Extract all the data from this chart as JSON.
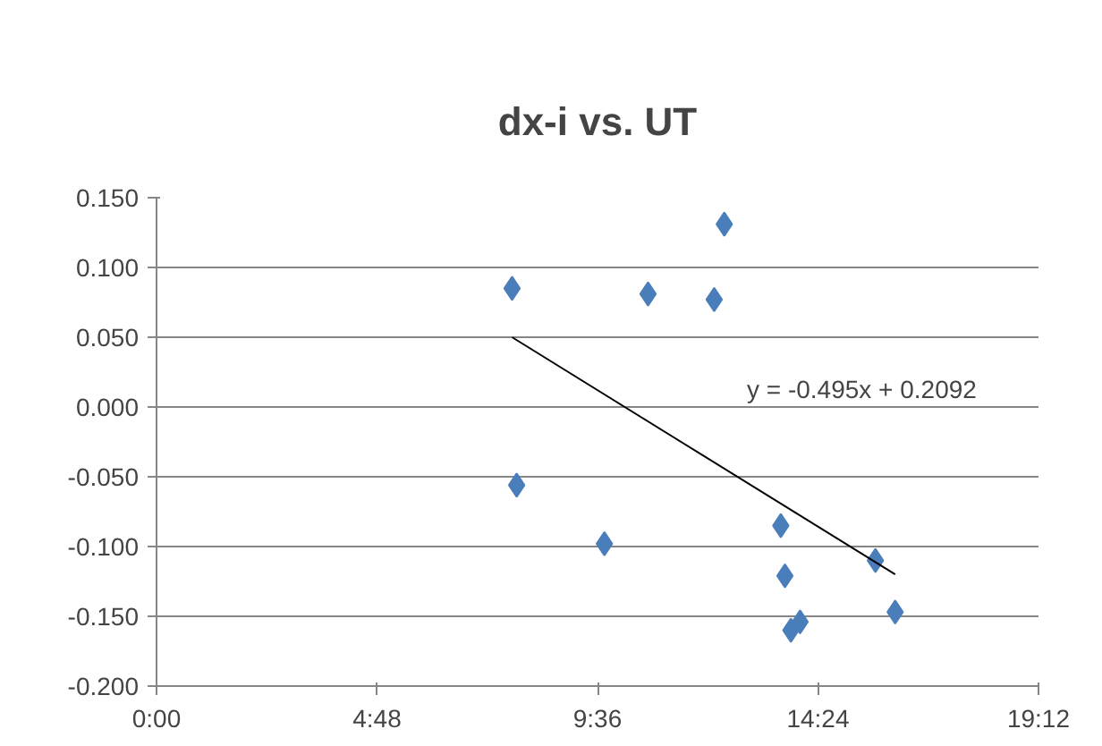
{
  "chart_data": {
    "type": "scatter",
    "title": "dx-i vs. UT",
    "xlim": [
      0,
      19.2
    ],
    "xticks": [
      {
        "value": 0,
        "label": "0:00"
      },
      {
        "value": 4.8,
        "label": "4:48"
      },
      {
        "value": 9.6,
        "label": "9:36"
      },
      {
        "value": 14.4,
        "label": "14:24"
      },
      {
        "value": 19.2,
        "label": "19:12"
      }
    ],
    "ylim": [
      -0.2,
      0.15
    ],
    "yticks": [
      {
        "value": -0.2,
        "label": "-0.200"
      },
      {
        "value": -0.15,
        "label": "-0.150"
      },
      {
        "value": -0.1,
        "label": "-0.100"
      },
      {
        "value": -0.05,
        "label": "-0.050"
      },
      {
        "value": 0,
        "label": "0.000"
      },
      {
        "value": 0.05,
        "label": "0.050"
      },
      {
        "value": 0.1,
        "label": "0.100"
      },
      {
        "value": 0.15,
        "label": "0.150"
      }
    ],
    "grid": "y",
    "marker": "diamond",
    "series": [
      {
        "color": "#4a7ebb",
        "x": [
          7.74,
          10.7,
          12.14,
          12.36,
          7.84,
          9.75,
          13.59,
          13.68,
          14.01,
          13.81,
          15.65,
          16.08
        ],
        "values": [
          0.085,
          0.081,
          0.077,
          0.131,
          -0.056,
          -0.098,
          -0.085,
          -0.121,
          -0.154,
          -0.16,
          -0.11,
          -0.147
        ]
      },
      {
        "type": "line",
        "marker": "none",
        "color": "#000000",
        "x": [
          7.74,
          16.08
        ],
        "values": [
          0.05,
          -0.12
        ]
      }
    ],
    "annotations": [
      "y = -0.495x + 0.2092"
    ]
  }
}
